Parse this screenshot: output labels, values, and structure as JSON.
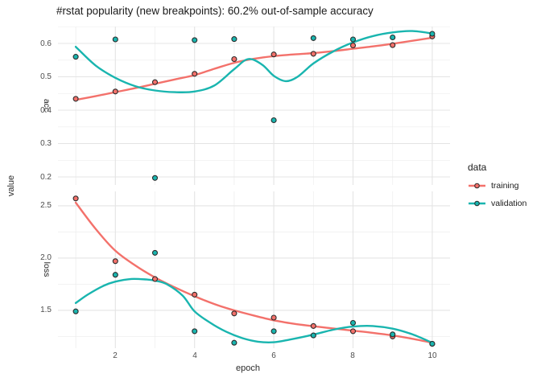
{
  "colors": {
    "training": "#F3716B",
    "validation": "#19B5AF",
    "grid_major": "#e4e4e4",
    "grid_minor": "#ededed",
    "point_outline": "#2a2a2a",
    "tick_text": "#4d4d4d",
    "title_text": "#1a1a1a"
  },
  "legend": {
    "title": "data",
    "position": "right",
    "entries": [
      {
        "label": "training",
        "series": "training"
      },
      {
        "label": "validation",
        "series": "validation"
      }
    ]
  },
  "chart_data": {
    "type": "scatter+smooth",
    "title": "#rstat popularity (new breakpoints): 60.2% out-of-sample accuracy",
    "x_title": "epoch",
    "y_title": "value",
    "legend_title": "data",
    "grid": true,
    "x": [
      1,
      2,
      3,
      4,
      5,
      6,
      7,
      8,
      9,
      10
    ],
    "xlim": [
      0.55,
      10.45
    ],
    "x_ticks": [
      {
        "label": "2",
        "v": 2
      },
      {
        "label": "4",
        "v": 4
      },
      {
        "label": "6",
        "v": 6
      },
      {
        "label": "8",
        "v": 8
      },
      {
        "label": "10",
        "v": 10
      }
    ],
    "x_minor": [
      1,
      3,
      5,
      7,
      9
    ],
    "facets": [
      {
        "name": "acc",
        "ylim": [
          0.176,
          0.6506
        ],
        "y_ticks": [
          {
            "label": "0.6",
            "v": 0.6
          },
          {
            "label": "0.5",
            "v": 0.5
          },
          {
            "label": "0.4",
            "v": 0.4
          },
          {
            "label": "0.3",
            "v": 0.3
          },
          {
            "label": "0.2",
            "v": 0.2
          }
        ],
        "y_minor": [
          0.65,
          0.55,
          0.45,
          0.35,
          0.25
        ],
        "series": [
          {
            "name": "training",
            "points": [
              [
                1,
                0.434
              ],
              [
                2,
                0.456
              ],
              [
                3,
                0.484
              ],
              [
                4,
                0.509
              ],
              [
                5,
                0.553
              ],
              [
                6,
                0.567
              ],
              [
                7,
                0.569
              ],
              [
                8,
                0.594
              ],
              [
                9,
                0.595
              ],
              [
                10,
                0.621
              ]
            ],
            "smooth": [
              [
                1,
                0.431
              ],
              [
                1.5,
                0.442
              ],
              [
                2,
                0.454
              ],
              [
                2.5,
                0.466
              ],
              [
                3,
                0.479
              ],
              [
                3.5,
                0.492
              ],
              [
                4,
                0.505
              ],
              [
                4.5,
                0.524
              ],
              [
                5,
                0.542
              ],
              [
                5.5,
                0.554
              ],
              [
                6,
                0.562
              ],
              [
                6.5,
                0.567
              ],
              [
                7,
                0.571
              ],
              [
                7.5,
                0.577
              ],
              [
                8,
                0.584
              ],
              [
                8.5,
                0.591
              ],
              [
                9,
                0.599
              ],
              [
                9.5,
                0.608
              ],
              [
                10,
                0.617
              ]
            ]
          },
          {
            "name": "validation",
            "points": [
              [
                1,
                0.56
              ],
              [
                2,
                0.612
              ],
              [
                3,
                0.197
              ],
              [
                4,
                0.61
              ],
              [
                5,
                0.613
              ],
              [
                6,
                0.37
              ],
              [
                7,
                0.616
              ],
              [
                8,
                0.612
              ],
              [
                9,
                0.618
              ],
              [
                10,
                0.629
              ]
            ],
            "smooth": [
              [
                1,
                0.59
              ],
              [
                1.5,
                0.534
              ],
              [
                2,
                0.497
              ],
              [
                2.5,
                0.472
              ],
              [
                3,
                0.459
              ],
              [
                3.5,
                0.454
              ],
              [
                4,
                0.456
              ],
              [
                4.5,
                0.474
              ],
              [
                5,
                0.523
              ],
              [
                5.35,
                0.553
              ],
              [
                5.7,
                0.537
              ],
              [
                6,
                0.503
              ],
              [
                6.3,
                0.487
              ],
              [
                6.6,
                0.5
              ],
              [
                7,
                0.54
              ],
              [
                7.5,
                0.576
              ],
              [
                8,
                0.603
              ],
              [
                8.5,
                0.622
              ],
              [
                9,
                0.633
              ],
              [
                9.5,
                0.637
              ],
              [
                10,
                0.63
              ]
            ]
          }
        ]
      },
      {
        "name": "loss",
        "ylim": [
          1.138,
          2.638
        ],
        "y_ticks": [
          {
            "label": "2.5",
            "v": 2.5
          },
          {
            "label": "2.0",
            "v": 2.0
          },
          {
            "label": "1.5",
            "v": 1.5
          }
        ],
        "y_minor": [
          2.25,
          1.75,
          1.25
        ],
        "series": [
          {
            "name": "training",
            "points": [
              [
                1,
                2.57
              ],
              [
                2,
                1.97
              ],
              [
                3,
                1.8
              ],
              [
                4,
                1.65
              ],
              [
                5,
                1.47
              ],
              [
                6,
                1.43
              ],
              [
                7,
                1.35
              ],
              [
                8,
                1.3
              ],
              [
                9,
                1.25
              ],
              [
                10,
                1.18
              ]
            ],
            "smooth": [
              [
                1,
                2.53
              ],
              [
                1.5,
                2.28
              ],
              [
                2,
                2.07
              ],
              [
                2.5,
                1.93
              ],
              [
                3,
                1.815
              ],
              [
                3.5,
                1.72
              ],
              [
                4,
                1.635
              ],
              [
                4.5,
                1.56
              ],
              [
                5,
                1.5
              ],
              [
                5.5,
                1.45
              ],
              [
                6,
                1.405
              ],
              [
                6.5,
                1.372
              ],
              [
                7,
                1.348
              ],
              [
                7.5,
                1.327
              ],
              [
                8,
                1.306
              ],
              [
                8.5,
                1.285
              ],
              [
                9,
                1.26
              ],
              [
                9.5,
                1.228
              ],
              [
                10,
                1.19
              ]
            ]
          },
          {
            "name": "validation",
            "points": [
              [
                1,
                1.49
              ],
              [
                2,
                1.84
              ],
              [
                3,
                2.05
              ],
              [
                4,
                1.3
              ],
              [
                5,
                1.19
              ],
              [
                6,
                1.3
              ],
              [
                7,
                1.26
              ],
              [
                8,
                1.38
              ],
              [
                9,
                1.27
              ],
              [
                10,
                1.18
              ]
            ],
            "smooth": [
              [
                1,
                1.57
              ],
              [
                1.3,
                1.65
              ],
              [
                1.7,
                1.735
              ],
              [
                2,
                1.775
              ],
              [
                2.4,
                1.8
              ],
              [
                2.8,
                1.795
              ],
              [
                3,
                1.785
              ],
              [
                3.3,
                1.75
              ],
              [
                3.7,
                1.64
              ],
              [
                4,
                1.49
              ],
              [
                4.4,
                1.38
              ],
              [
                4.8,
                1.295
              ],
              [
                5.2,
                1.235
              ],
              [
                5.6,
                1.2
              ],
              [
                6,
                1.195
              ],
              [
                6.4,
                1.22
              ],
              [
                7,
                1.268
              ],
              [
                7.5,
                1.315
              ],
              [
                8,
                1.345
              ],
              [
                8.5,
                1.35
              ],
              [
                9,
                1.325
              ],
              [
                9.5,
                1.27
              ],
              [
                10,
                1.19
              ]
            ]
          }
        ]
      }
    ]
  }
}
